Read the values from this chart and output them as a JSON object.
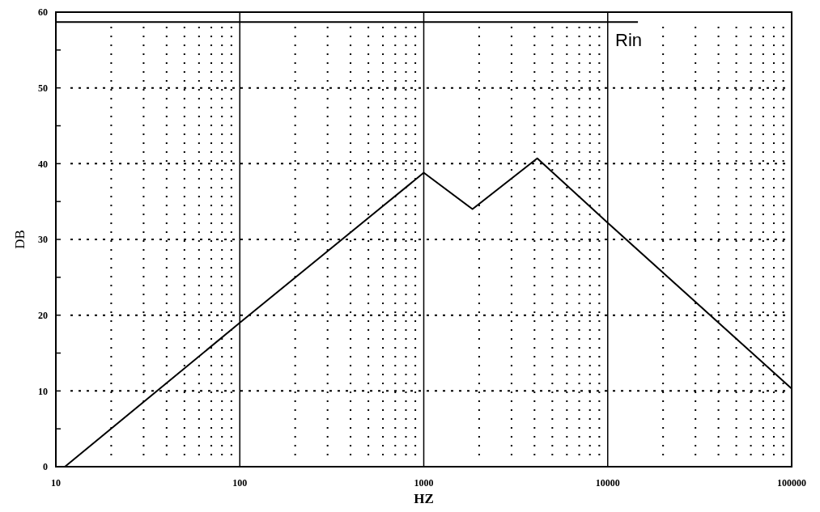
{
  "chart_data": {
    "type": "line",
    "xlabel": "HZ",
    "ylabel": "DB",
    "log": "x",
    "grid": true,
    "marker": "none",
    "line_style": "solid",
    "xlim": [
      10,
      100000
    ],
    "ylim": [
      0,
      60
    ],
    "xticks": [
      10,
      {
        "value": 20,
        "label": null
      },
      {
        "value": 30,
        "label": null
      },
      {
        "value": 40,
        "label": null
      },
      {
        "value": 50,
        "label": null
      },
      {
        "value": 60,
        "label": null
      },
      {
        "value": 70,
        "label": null
      },
      {
        "value": 80,
        "label": null
      },
      {
        "value": 90,
        "label": null
      },
      100,
      {
        "value": 200,
        "label": null
      },
      {
        "value": 300,
        "label": null
      },
      {
        "value": 400,
        "label": null
      },
      {
        "value": 500,
        "label": null
      },
      {
        "value": 600,
        "label": null
      },
      {
        "value": 700,
        "label": null
      },
      {
        "value": 800,
        "label": null
      },
      {
        "value": 900,
        "label": null
      },
      1000,
      {
        "value": 2000,
        "label": null
      },
      {
        "value": 3000,
        "label": null
      },
      {
        "value": 4000,
        "label": null
      },
      {
        "value": 5000,
        "label": null
      },
      {
        "value": 6000,
        "label": null
      },
      {
        "value": 7000,
        "label": null
      },
      {
        "value": 8000,
        "label": null
      },
      {
        "value": 9000,
        "label": null
      },
      10000,
      {
        "value": 20000,
        "label": null
      },
      {
        "value": 30000,
        "label": null
      },
      {
        "value": 40000,
        "label": null
      },
      {
        "value": 50000,
        "label": null
      },
      {
        "value": 60000,
        "label": null
      },
      {
        "value": 70000,
        "label": null
      },
      {
        "value": 80000,
        "label": null
      },
      {
        "value": 90000,
        "label": null
      },
      100000
    ],
    "yticks": [
      0,
      {
        "value": 5,
        "label": null
      },
      10,
      {
        "value": 15,
        "label": null
      },
      20,
      {
        "value": 25,
        "label": null
      },
      30,
      {
        "value": 35,
        "label": null
      },
      40,
      {
        "value": 45,
        "label": null
      },
      50,
      {
        "value": 55,
        "label": null
      },
      60
    ],
    "series": [
      {
        "color": "#000000",
        "x": [
          11.2,
          100,
          1000,
          1840,
          4140,
          10000,
          100000
        ],
        "values": [
          0,
          19,
          38.8,
          34,
          40.7,
          32.2,
          10.3
        ]
      },
      {
        "name": "Rin",
        "color": "#000000",
        "x": [
          10,
          14600
        ],
        "values": [
          58.7,
          58.7
        ]
      }
    ]
  }
}
